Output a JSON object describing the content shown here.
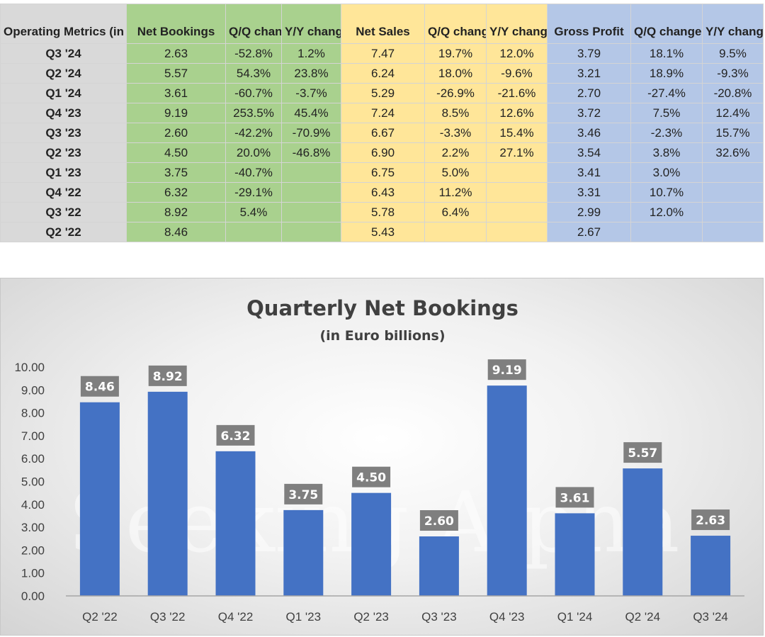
{
  "table": {
    "headers": [
      "Operating Metrics (in Euro B)",
      "Net Bookings",
      "Q/Q change",
      "Y/Y change",
      "Net Sales",
      "Q/Q change",
      "Y/Y change",
      "Gross Profit",
      "Q/Q change",
      "Y/Y change"
    ],
    "rows": [
      [
        "Q3 '24",
        "2.63",
        "-52.8%",
        "1.2%",
        "7.47",
        "19.7%",
        "12.0%",
        "3.79",
        "18.1%",
        "9.5%"
      ],
      [
        "Q2 '24",
        "5.57",
        "54.3%",
        "23.8%",
        "6.24",
        "18.0%",
        "-9.6%",
        "3.21",
        "18.9%",
        "-9.3%"
      ],
      [
        "Q1 '24",
        "3.61",
        "-60.7%",
        "-3.7%",
        "5.29",
        "-26.9%",
        "-21.6%",
        "2.70",
        "-27.4%",
        "-20.8%"
      ],
      [
        "Q4 '23",
        "9.19",
        "253.5%",
        "45.4%",
        "7.24",
        "8.5%",
        "12.6%",
        "3.72",
        "7.5%",
        "12.4%"
      ],
      [
        "Q3 '23",
        "2.60",
        "-42.2%",
        "-70.9%",
        "6.67",
        "-3.3%",
        "15.4%",
        "3.46",
        "-2.3%",
        "15.7%"
      ],
      [
        "Q2 '23",
        "4.50",
        "20.0%",
        "-46.8%",
        "6.90",
        "2.2%",
        "27.1%",
        "3.54",
        "3.8%",
        "32.6%"
      ],
      [
        "Q1 '23",
        "3.75",
        "-40.7%",
        "",
        "6.75",
        "5.0%",
        "",
        "3.41",
        "3.0%",
        ""
      ],
      [
        "Q4 '22",
        "6.32",
        "-29.1%",
        "",
        "6.43",
        "11.2%",
        "",
        "3.31",
        "10.7%",
        ""
      ],
      [
        "Q3 '22",
        "8.92",
        "5.4%",
        "",
        "5.78",
        "6.4%",
        "",
        "2.99",
        "12.0%",
        ""
      ],
      [
        "Q2 '22",
        "8.46",
        "",
        "",
        "5.43",
        "",
        "",
        "2.67",
        "",
        ""
      ]
    ]
  },
  "chart_data": {
    "type": "bar",
    "title": "Quarterly Net Bookings",
    "subtitle": "(in Euro billions)",
    "categories": [
      "Q2 '22",
      "Q3 '22",
      "Q4 '22",
      "Q1 '23",
      "Q2 '23",
      "Q3 '23",
      "Q4 '23",
      "Q1 '24",
      "Q2 '24",
      "Q3 '24"
    ],
    "values": [
      8.46,
      8.92,
      6.32,
      3.75,
      4.5,
      2.6,
      9.19,
      3.61,
      5.57,
      2.63
    ],
    "value_labels": [
      "8.46",
      "8.92",
      "6.32",
      "3.75",
      "4.50",
      "2.60",
      "9.19",
      "3.61",
      "5.57",
      "2.63"
    ],
    "y_ticks": [
      "0.00",
      "1.00",
      "2.00",
      "3.00",
      "4.00",
      "5.00",
      "6.00",
      "7.00",
      "8.00",
      "9.00",
      "10.00"
    ],
    "ylim": [
      0,
      10
    ],
    "xlabel": "",
    "ylabel": "",
    "grid": false,
    "legend": "none",
    "bar_color": "#4472c4",
    "label_box_color": "#7f7f7f"
  },
  "watermark": "Seeking Alpha",
  "colors": {
    "net_bookings": "#a9d18e",
    "net_sales": "#ffe699",
    "gross_profit": "#b4c7e7",
    "label_column": "#d9d9d9"
  }
}
